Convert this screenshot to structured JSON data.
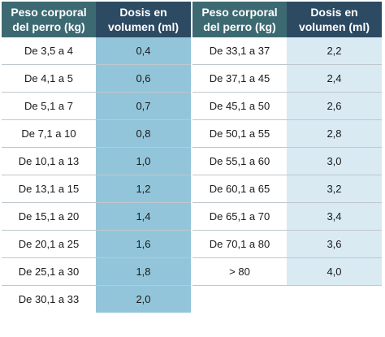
{
  "headers": {
    "weight_left": "Peso corporal\ndel perro (kg)",
    "dose_left": "Dosis en\nvolumen (ml)",
    "weight_right": "Peso corporal\ndel perro (kg)",
    "dose_right": "Dosis en\nvolumen (ml)"
  },
  "rows": [
    {
      "w1": "De 3,5 a 4",
      "d1": "0,4",
      "w2": "De 33,1 a 37",
      "d2": "2,2"
    },
    {
      "w1": "De 4,1 a 5",
      "d1": "0,6",
      "w2": "De 37,1 a 45",
      "d2": "2,4"
    },
    {
      "w1": "De 5,1 a 7",
      "d1": "0,7",
      "w2": "De 45,1 a 50",
      "d2": "2,6"
    },
    {
      "w1": "De 7,1 a 10",
      "d1": "0,8",
      "w2": "De 50,1 a 55",
      "d2": "2,8"
    },
    {
      "w1": "De 10,1 a 13",
      "d1": "1,0",
      "w2": "De 55,1 a 60",
      "d2": "3,0"
    },
    {
      "w1": "De 13,1 a 15",
      "d1": "1,2",
      "w2": "De 60,1 a 65",
      "d2": "3,2"
    },
    {
      "w1": "De 15,1 a 20",
      "d1": "1,4",
      "w2": "De 65,1 a 70",
      "d2": "3,4"
    },
    {
      "w1": "De 20,1 a 25",
      "d1": "1,6",
      "w2": "De 70,1 a 80",
      "d2": "3,6"
    },
    {
      "w1": "De 25,1 a 30",
      "d1": "1,8",
      "w2": "> 80",
      "d2": "4,0"
    },
    {
      "w1": "De 30,1 a 33",
      "d1": "2,0",
      "w2": "",
      "d2": ""
    }
  ],
  "colors": {
    "header_weight": "#3d6a72",
    "header_dose": "#2d4a63",
    "dose_left_fill": "#93c5da",
    "dose_right_fill": "#d9eaf3"
  }
}
